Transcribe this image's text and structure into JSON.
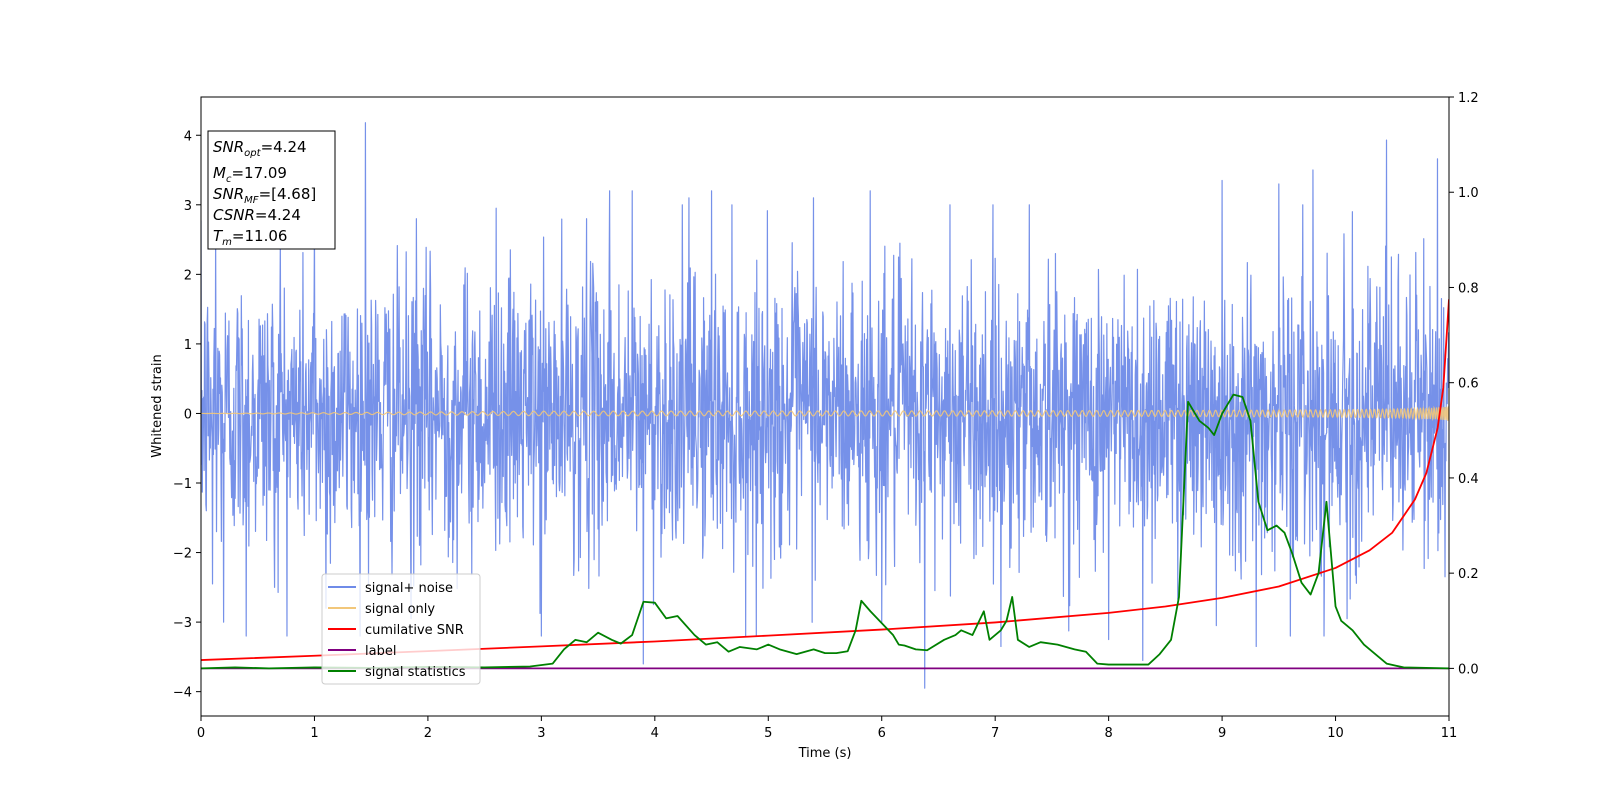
{
  "chart_data": {
    "type": "line",
    "xlabel": "Time (s)",
    "ylabel": "Whitened strain",
    "xlim": [
      0,
      11
    ],
    "ylim_left": [
      -4.35,
      4.55
    ],
    "ylim_right": [
      -0.1,
      1.2
    ],
    "x_ticks": [
      0,
      1,
      2,
      3,
      4,
      5,
      6,
      7,
      8,
      9,
      10,
      11
    ],
    "y_ticks_left": [
      -4,
      -3,
      -2,
      -1,
      0,
      1,
      2,
      3,
      4
    ],
    "y_ticks_right": [
      0.0,
      0.2,
      0.4,
      0.6,
      0.8,
      1.0,
      1.2
    ],
    "grid": false,
    "legend_location": "lower-left",
    "series": [
      {
        "name": "signal+ noise",
        "color": "#6f8be8",
        "axis": "left",
        "kind": "dense-noise",
        "sample_rate_per_s": 256,
        "noise_std": 1.0,
        "spikes": [
          [
            0.13,
            2.6
          ],
          [
            0.7,
            2.5
          ],
          [
            1.0,
            2.75
          ],
          [
            1.1,
            2.35
          ],
          [
            1.45,
            4.18
          ],
          [
            1.9,
            2.8
          ],
          [
            2.6,
            2.95
          ],
          [
            3.4,
            2.8
          ],
          [
            3.6,
            3.2
          ],
          [
            3.8,
            3.2
          ],
          [
            4.3,
            3.1
          ],
          [
            4.5,
            3.2
          ],
          [
            5.4,
            3.1
          ],
          [
            5.9,
            3.2
          ],
          [
            6.6,
            3.0
          ],
          [
            7.3,
            3.0
          ],
          [
            8.3,
            3.25
          ],
          [
            9.0,
            3.35
          ],
          [
            9.3,
            3.7
          ],
          [
            9.5,
            3.3
          ],
          [
            9.8,
            3.5
          ],
          [
            10.15,
            2.9
          ],
          [
            10.45,
            3.93
          ],
          [
            10.9,
            3.66
          ],
          [
            0.1,
            -2.45
          ],
          [
            0.2,
            -3.0
          ],
          [
            0.4,
            -3.2
          ],
          [
            0.65,
            -2.5
          ],
          [
            1.1,
            -2.8
          ],
          [
            1.85,
            -2.95
          ],
          [
            3.0,
            -3.2
          ],
          [
            3.9,
            -3.6
          ],
          [
            4.8,
            -3.2
          ],
          [
            6.0,
            -3.0
          ],
          [
            6.38,
            -3.95
          ],
          [
            7.05,
            -3.35
          ],
          [
            8.0,
            -3.25
          ],
          [
            8.3,
            -3.55
          ],
          [
            8.95,
            -3.05
          ],
          [
            9.3,
            -3.35
          ],
          [
            9.6,
            -3.2
          ],
          [
            10.1,
            -2.95
          ]
        ],
        "points": [
          [
            0,
            0.4
          ],
          [
            0.5,
            -0.3
          ],
          [
            1.0,
            0.2
          ],
          [
            2.0,
            -0.1
          ],
          [
            3.0,
            0.3
          ],
          [
            4.0,
            -0.2
          ],
          [
            5.0,
            0.1
          ],
          [
            6.0,
            -0.3
          ],
          [
            7.0,
            0.2
          ],
          [
            8.0,
            -0.1
          ],
          [
            9.0,
            0.3
          ],
          [
            10.0,
            -0.2
          ],
          [
            11.0,
            0.1
          ]
        ]
      },
      {
        "name": "signal only",
        "color": "#f2c77a",
        "axis": "left",
        "kind": "chirp",
        "f0_hz": 10,
        "t_merge_s": 11.06,
        "amp_start": 0.03,
        "amp_end": 0.32,
        "points": [
          [
            0,
            0.0
          ],
          [
            8.5,
            0.04
          ],
          [
            10.0,
            0.1
          ],
          [
            10.6,
            0.2
          ],
          [
            11.0,
            0.32
          ]
        ]
      },
      {
        "name": "cumilative SNR",
        "color": "#ff0000",
        "axis": "right",
        "points": [
          [
            0.0,
            0.0175
          ],
          [
            1.0,
            0.0265
          ],
          [
            2.0,
            0.0363
          ],
          [
            3.0,
            0.0462
          ],
          [
            4.0,
            0.0565
          ],
          [
            5.0,
            0.0688
          ],
          [
            6.0,
            0.0815
          ],
          [
            7.0,
            0.0965
          ],
          [
            8.0,
            0.1165
          ],
          [
            8.5,
            0.13
          ],
          [
            9.0,
            0.148
          ],
          [
            9.5,
            0.172
          ],
          [
            10.0,
            0.211
          ],
          [
            10.3,
            0.248
          ],
          [
            10.5,
            0.285
          ],
          [
            10.7,
            0.355
          ],
          [
            10.8,
            0.41
          ],
          [
            10.9,
            0.505
          ],
          [
            10.95,
            0.59
          ],
          [
            11.0,
            0.775
          ]
        ]
      },
      {
        "name": "label",
        "color": "#800080",
        "axis": "right",
        "points": [
          [
            0.0,
            0.0
          ],
          [
            11.0,
            0.0
          ]
        ]
      },
      {
        "name": "signal statistics",
        "color": "#008000",
        "axis": "right",
        "points": [
          [
            0.0,
            0.0
          ],
          [
            0.3,
            0.002
          ],
          [
            0.6,
            0.0
          ],
          [
            1.0,
            0.002
          ],
          [
            1.5,
            0.001
          ],
          [
            2.0,
            0.003
          ],
          [
            2.5,
            0.002
          ],
          [
            2.9,
            0.004
          ],
          [
            3.1,
            0.01
          ],
          [
            3.2,
            0.04
          ],
          [
            3.3,
            0.06
          ],
          [
            3.4,
            0.055
          ],
          [
            3.5,
            0.075
          ],
          [
            3.62,
            0.06
          ],
          [
            3.7,
            0.052
          ],
          [
            3.8,
            0.07
          ],
          [
            3.9,
            0.14
          ],
          [
            4.0,
            0.138
          ],
          [
            4.1,
            0.105
          ],
          [
            4.2,
            0.11
          ],
          [
            4.35,
            0.07
          ],
          [
            4.45,
            0.05
          ],
          [
            4.55,
            0.055
          ],
          [
            4.65,
            0.035
          ],
          [
            4.75,
            0.045
          ],
          [
            4.9,
            0.04
          ],
          [
            5.0,
            0.05
          ],
          [
            5.1,
            0.04
          ],
          [
            5.25,
            0.03
          ],
          [
            5.4,
            0.04
          ],
          [
            5.5,
            0.032
          ],
          [
            5.6,
            0.032
          ],
          [
            5.7,
            0.036
          ],
          [
            5.77,
            0.08
          ],
          [
            5.82,
            0.142
          ],
          [
            5.9,
            0.12
          ],
          [
            6.0,
            0.095
          ],
          [
            6.1,
            0.07
          ],
          [
            6.15,
            0.05
          ],
          [
            6.2,
            0.048
          ],
          [
            6.3,
            0.04
          ],
          [
            6.4,
            0.038
          ],
          [
            6.55,
            0.06
          ],
          [
            6.65,
            0.07
          ],
          [
            6.7,
            0.08
          ],
          [
            6.8,
            0.07
          ],
          [
            6.9,
            0.12
          ],
          [
            6.95,
            0.06
          ],
          [
            7.05,
            0.08
          ],
          [
            7.1,
            0.1
          ],
          [
            7.15,
            0.15
          ],
          [
            7.2,
            0.06
          ],
          [
            7.3,
            0.045
          ],
          [
            7.4,
            0.055
          ],
          [
            7.55,
            0.05
          ],
          [
            7.7,
            0.04
          ],
          [
            7.8,
            0.035
          ],
          [
            7.9,
            0.01
          ],
          [
            8.0,
            0.008
          ],
          [
            8.2,
            0.008
          ],
          [
            8.35,
            0.008
          ],
          [
            8.45,
            0.03
          ],
          [
            8.55,
            0.06
          ],
          [
            8.62,
            0.15
          ],
          [
            8.7,
            0.56
          ],
          [
            8.8,
            0.52
          ],
          [
            8.88,
            0.505
          ],
          [
            8.93,
            0.49
          ],
          [
            9.0,
            0.535
          ],
          [
            9.1,
            0.575
          ],
          [
            9.18,
            0.57
          ],
          [
            9.25,
            0.52
          ],
          [
            9.32,
            0.35
          ],
          [
            9.4,
            0.29
          ],
          [
            9.48,
            0.3
          ],
          [
            9.55,
            0.285
          ],
          [
            9.62,
            0.24
          ],
          [
            9.7,
            0.18
          ],
          [
            9.78,
            0.155
          ],
          [
            9.85,
            0.2
          ],
          [
            9.92,
            0.35
          ],
          [
            10.0,
            0.13
          ],
          [
            10.05,
            0.1
          ],
          [
            10.15,
            0.08
          ],
          [
            10.25,
            0.05
          ],
          [
            10.35,
            0.03
          ],
          [
            10.45,
            0.01
          ],
          [
            10.6,
            0.002
          ],
          [
            11.0,
            0.0
          ]
        ]
      }
    ],
    "info_box": {
      "lines": [
        {
          "main": "SNR",
          "sub": "opt",
          "value": "=4.24"
        },
        {
          "main": "M",
          "sub": "c",
          "value": "=17.09"
        },
        {
          "main": "SNR",
          "sub": "MF",
          "value": "=[4.68]"
        },
        {
          "main": "CSNR",
          "sub": "",
          "value": "=4.24"
        },
        {
          "main": "T",
          "sub": "m",
          "value": "=11.06"
        }
      ]
    }
  }
}
